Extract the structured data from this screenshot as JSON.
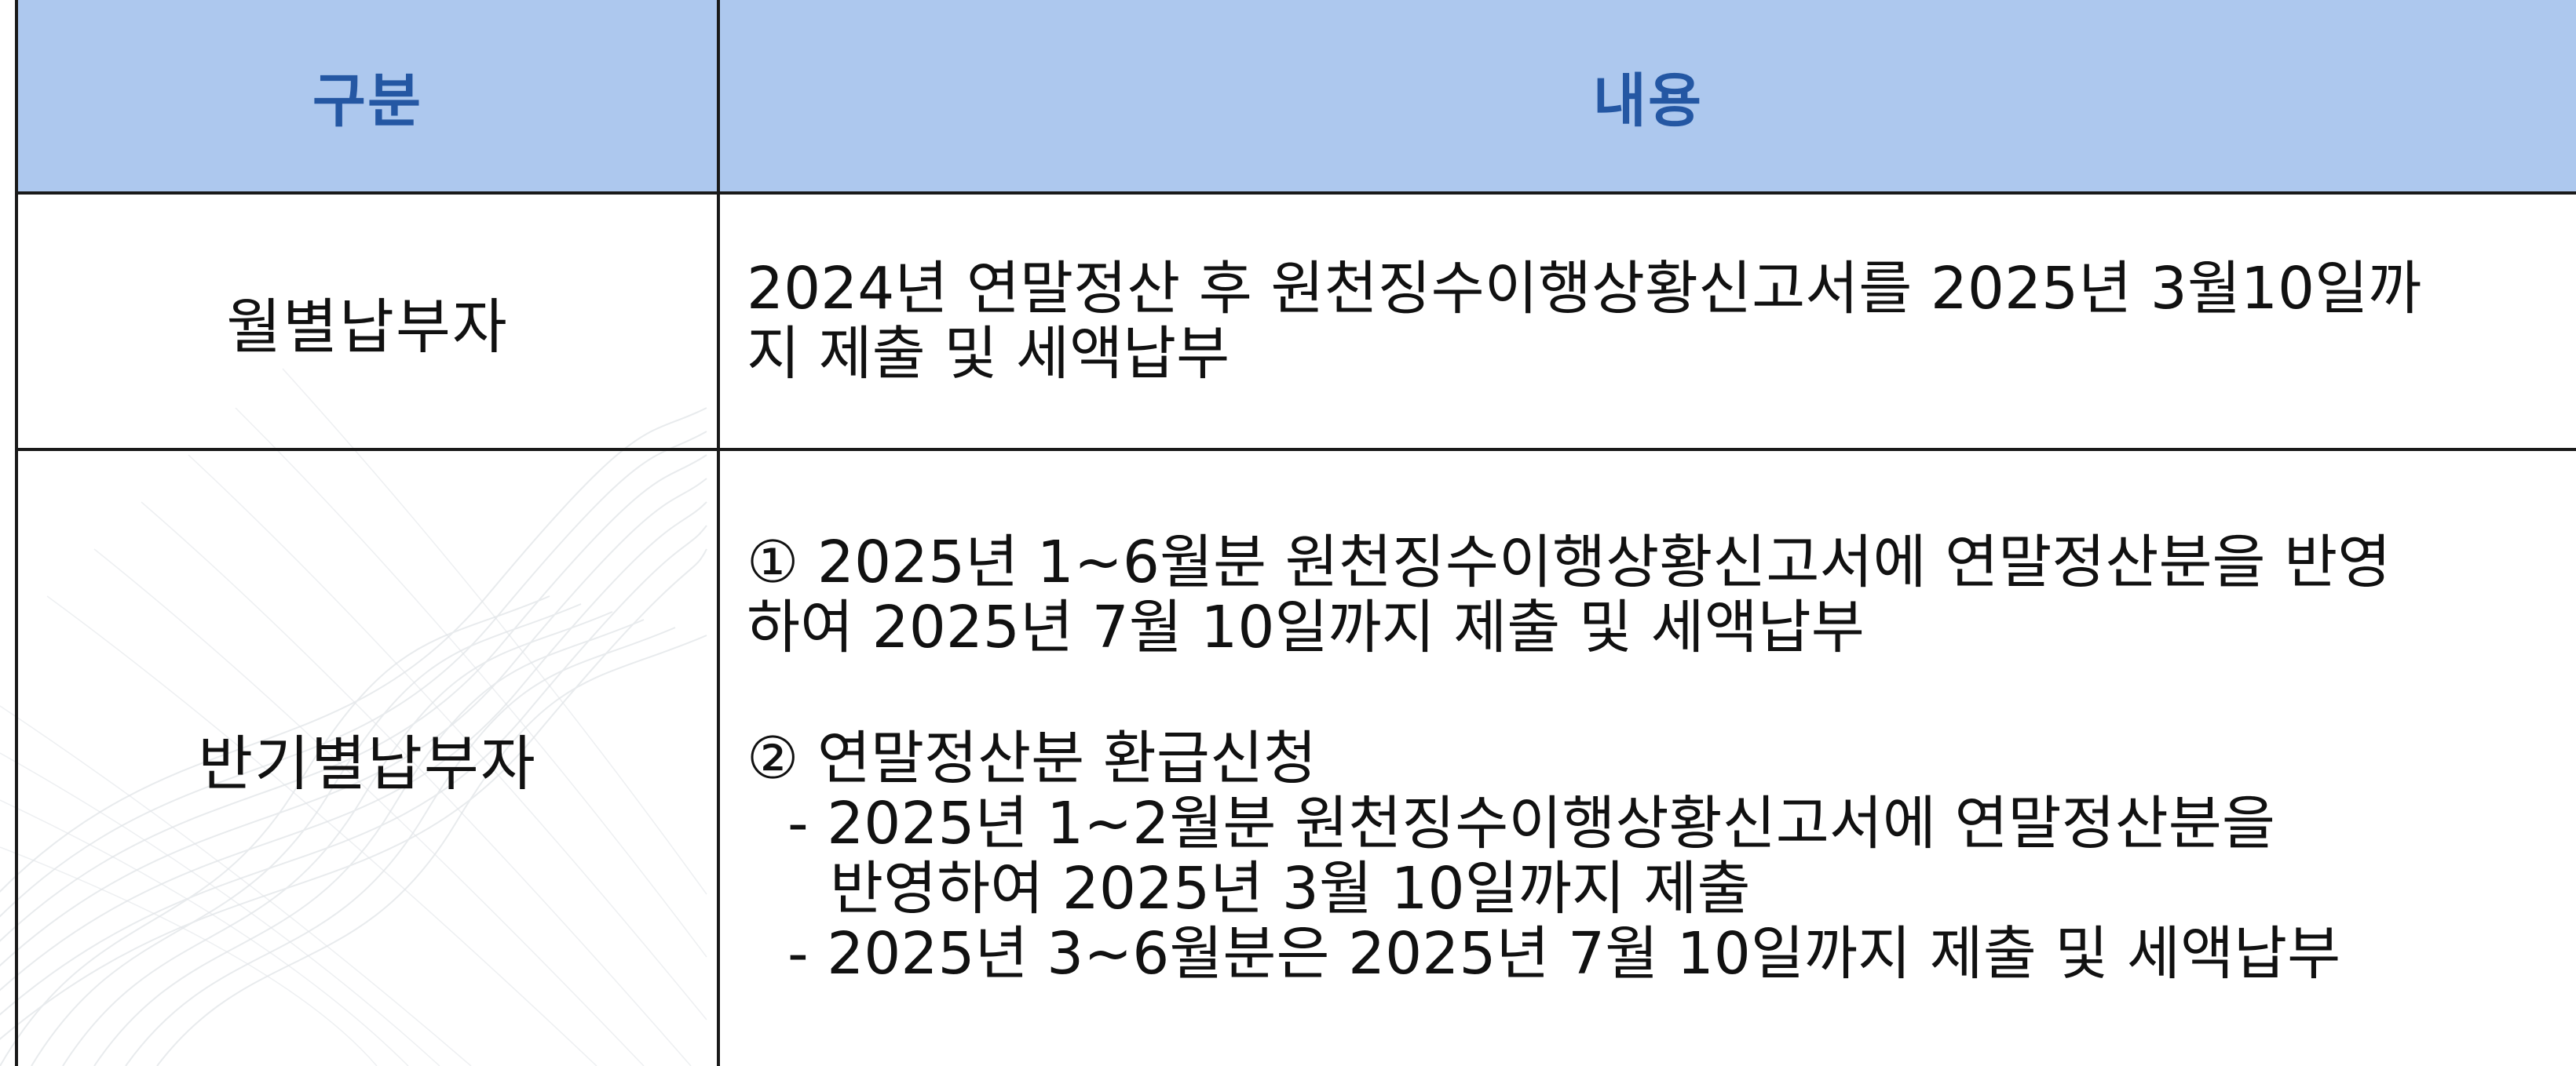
{
  "table": {
    "header": {
      "category": "구분",
      "content": "내용"
    },
    "rows": [
      {
        "category": "월별납부자",
        "lines": [
          "2024년 연말정산 후 원천징수이행상황신고서를 2025년 3월10일까",
          "지 제출 및 세액납부"
        ]
      },
      {
        "category": "반기별납부자",
        "item1": {
          "line1": "① 2025년 1~6월분 원천징수이행상황신고서에 연말정산분을 반영",
          "line2": "하여 2025년 7월 10일까지 제출 및 세액납부"
        },
        "item2": {
          "title": "② 연말정산분 환급신청",
          "sub1_line1": "- 2025년 1~2월분 원천징수이행상황신고서에 연말정산분을",
          "sub1_line2": "반영하여 2025년 3월 10일까지 제출",
          "sub2": "- 2025년 3~6월분은 2025년 7월 10일까지 제출 및 세액납부"
        }
      }
    ]
  },
  "colors": {
    "header_bg": "#adc8ee",
    "header_text": "#2457a3",
    "border": "#1a1a1a",
    "body_text": "#111111"
  }
}
